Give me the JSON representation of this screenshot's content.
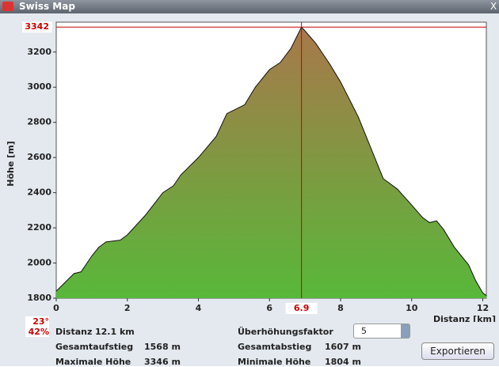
{
  "window": {
    "title": "Swiss Map",
    "close": "X"
  },
  "chart_data": {
    "type": "area",
    "x_label": "Distanz [km]",
    "y_label": "Höhe [m]",
    "x": [
      0,
      0.3,
      0.5,
      0.7,
      1.0,
      1.2,
      1.4,
      1.8,
      2.0,
      2.5,
      3.0,
      3.3,
      3.5,
      4.0,
      4.5,
      4.8,
      5.1,
      5.3,
      5.6,
      6.0,
      6.3,
      6.6,
      6.9,
      7.0,
      7.3,
      7.7,
      8.0,
      8.5,
      8.8,
      9.2,
      9.6,
      10.0,
      10.3,
      10.5,
      10.7,
      10.9,
      11.2,
      11.6,
      11.8,
      12.0,
      12.1
    ],
    "values": [
      1840,
      1900,
      1940,
      1950,
      2040,
      2090,
      2120,
      2130,
      2160,
      2270,
      2400,
      2440,
      2500,
      2600,
      2720,
      2850,
      2880,
      2900,
      3000,
      3100,
      3140,
      3220,
      3342,
      3320,
      3250,
      3130,
      3030,
      2830,
      2680,
      2480,
      2420,
      2330,
      2260,
      2230,
      2240,
      2190,
      2090,
      1990,
      1900,
      1830,
      1815
    ],
    "xlim": [
      0,
      12.1
    ],
    "ylim": [
      1800,
      3370
    ],
    "xticks": [
      0,
      2,
      4,
      6,
      8,
      10,
      12
    ],
    "yticks": [
      1800,
      2000,
      2200,
      2400,
      2600,
      2800,
      3000,
      3200
    ],
    "marker": {
      "x": 6.9,
      "y": 3342,
      "color": "#cc0000"
    },
    "fill_top": "#a8784a",
    "fill_bottom": "#58b83a"
  },
  "slope": {
    "angle": "23°",
    "percent": "42%"
  },
  "info": [
    {
      "label": "Distanz",
      "value": "12.1 km"
    },
    {
      "label": "Gesamtaufstieg",
      "value": "1568 m"
    },
    {
      "label": "Maximale Höhe",
      "value": "3346 m"
    },
    {
      "label": "Gesamtabstieg",
      "value": "1607 m"
    },
    {
      "label": "Minimale Höhe",
      "value": "1804 m"
    }
  ],
  "factor": {
    "label": "Überhöhungsfaktor",
    "value": "5"
  },
  "button": "Exportieren"
}
